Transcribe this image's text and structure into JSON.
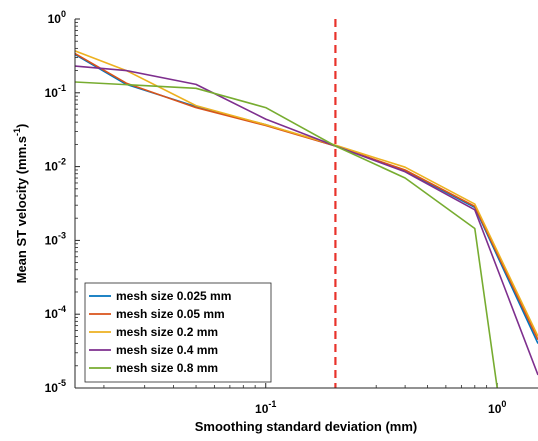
{
  "chart_data": {
    "type": "line",
    "xscale": "log",
    "yscale": "log",
    "xlim": [
      0.015,
      1.5
    ],
    "ylim": [
      1e-05,
      1
    ],
    "xlabel": "Smoothing standard deviation (mm)",
    "ylabel_main": "Mean ST velocity (mm.s",
    "ylabel_exp": "-1",
    "ylabel_close": ")",
    "xticks": [
      {
        "value": 0.1,
        "base": "10",
        "exp": "-1"
      },
      {
        "value": 1,
        "base": "10",
        "exp": "0"
      }
    ],
    "yticks": [
      {
        "value": 1,
        "base": "10",
        "exp": "0"
      },
      {
        "value": 0.1,
        "base": "10",
        "exp": "-1"
      },
      {
        "value": 0.01,
        "base": "10",
        "exp": "-2"
      },
      {
        "value": 0.001,
        "base": "10",
        "exp": "-3"
      },
      {
        "value": 0.0001,
        "base": "10",
        "exp": "-4"
      },
      {
        "value": 1e-05,
        "base": "10",
        "exp": "-5"
      }
    ],
    "reference_line": {
      "x": 0.2,
      "color": "#e8322b",
      "style": "dashed"
    },
    "legend_position": "bottom-left",
    "series": [
      {
        "name": "mesh size 0.025 mm",
        "color": "#0072bd",
        "x": [
          0.015,
          0.025,
          0.05,
          0.1,
          0.2,
          0.4,
          0.8,
          1.5
        ],
        "y": [
          0.33,
          0.13,
          0.065,
          0.037,
          0.019,
          0.0088,
          0.0028,
          4e-05
        ]
      },
      {
        "name": "mesh size 0.05 mm",
        "color": "#d95319",
        "x": [
          0.015,
          0.025,
          0.05,
          0.1,
          0.2,
          0.4,
          0.8,
          1.5
        ],
        "y": [
          0.34,
          0.135,
          0.063,
          0.036,
          0.019,
          0.009,
          0.0029,
          4.5e-05
        ]
      },
      {
        "name": "mesh size 0.2 mm",
        "color": "#edb120",
        "x": [
          0.015,
          0.025,
          0.05,
          0.1,
          0.2,
          0.4,
          0.8,
          1.5
        ],
        "y": [
          0.37,
          0.2,
          0.067,
          0.037,
          0.0195,
          0.0098,
          0.0031,
          5e-05
        ]
      },
      {
        "name": "mesh size 0.4 mm",
        "color": "#7e2f8e",
        "x": [
          0.015,
          0.025,
          0.05,
          0.1,
          0.2,
          0.4,
          0.8,
          1.5
        ],
        "y": [
          0.23,
          0.2,
          0.13,
          0.044,
          0.019,
          0.0085,
          0.0026,
          1.5e-05
        ]
      },
      {
        "name": "mesh size 0.8 mm",
        "color": "#77ac30",
        "x": [
          0.015,
          0.05,
          0.1,
          0.2,
          0.4,
          0.8,
          1.0
        ],
        "y": [
          0.14,
          0.115,
          0.063,
          0.019,
          0.007,
          0.00145,
          1e-05
        ]
      }
    ]
  }
}
